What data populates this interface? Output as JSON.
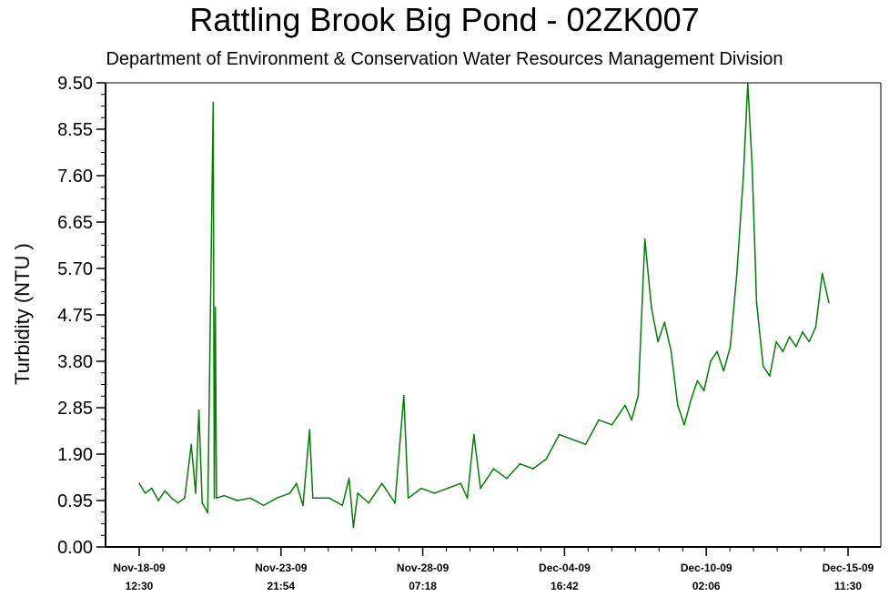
{
  "chart_data": {
    "type": "line",
    "title": "Rattling Brook Big Pond - 02ZK007",
    "subtitle": "Department of Environment & Conservation Water Resources Management Division",
    "ylabel": "Turbidity (NTU )",
    "xlabel": "",
    "ylim": [
      0,
      9.5
    ],
    "yticks": [
      "0.00",
      "0.95",
      "1.90",
      "2.85",
      "3.80",
      "4.75",
      "5.70",
      "6.65",
      "7.60",
      "8.55",
      "9.50"
    ],
    "xlim": [
      "Nov-18-09 12:30",
      "Dec-15-09 11:30"
    ],
    "xticks": [
      {
        "line1": "Nov-18-09",
        "line2": "12:30"
      },
      {
        "line1": "Nov-23-09",
        "line2": "21:54"
      },
      {
        "line1": "Nov-28-09",
        "line2": "07:18"
      },
      {
        "line1": "Dec-04-09",
        "line2": "16:42"
      },
      {
        "line1": "Dec-10-09",
        "line2": "02:06"
      },
      {
        "line1": "Dec-15-09",
        "line2": "11:30"
      }
    ],
    "grid": false,
    "series": [
      {
        "color": "#008000",
        "points": [
          [
            "Nov-18-09 12:30",
            1.3
          ],
          [
            "Nov-18-09 18:00",
            1.1
          ],
          [
            "Nov-19-09 00:00",
            1.2
          ],
          [
            "Nov-19-09 06:00",
            0.95
          ],
          [
            "Nov-19-09 12:00",
            1.15
          ],
          [
            "Nov-19-09 18:00",
            1.0
          ],
          [
            "Nov-20-09 00:00",
            0.9
          ],
          [
            "Nov-20-09 06:00",
            1.0
          ],
          [
            "Nov-20-09 12:00",
            2.1
          ],
          [
            "Nov-20-09 16:00",
            1.1
          ],
          [
            "Nov-20-09 19:00",
            2.8
          ],
          [
            "Nov-20-09 22:00",
            0.9
          ],
          [
            "Nov-21-09 03:00",
            0.7
          ],
          [
            "Nov-21-09 06:00",
            5.7
          ],
          [
            "Nov-21-09 08:00",
            9.1
          ],
          [
            "Nov-21-09 09:00",
            1.0
          ],
          [
            "Nov-21-09 10:00",
            4.9
          ],
          [
            "Nov-21-09 11:00",
            1.0
          ],
          [
            "Nov-21-09 18:00",
            1.05
          ],
          [
            "Nov-22-09 06:00",
            0.95
          ],
          [
            "Nov-22-09 18:00",
            1.0
          ],
          [
            "Nov-23-09 06:00",
            0.85
          ],
          [
            "Nov-23-09 18:00",
            1.0
          ],
          [
            "Nov-24-09 06:00",
            1.1
          ],
          [
            "Nov-24-09 12:00",
            1.3
          ],
          [
            "Nov-24-09 18:00",
            0.85
          ],
          [
            "Nov-25-09 00:00",
            2.4
          ],
          [
            "Nov-25-09 03:00",
            1.0
          ],
          [
            "Nov-25-09 18:00",
            1.0
          ],
          [
            "Nov-26-09 06:00",
            0.85
          ],
          [
            "Nov-26-09 12:00",
            1.4
          ],
          [
            "Nov-26-09 16:00",
            0.4
          ],
          [
            "Nov-26-09 20:00",
            1.1
          ],
          [
            "Nov-27-09 06:00",
            0.9
          ],
          [
            "Nov-27-09 18:00",
            1.3
          ],
          [
            "Nov-28-09 06:00",
            0.9
          ],
          [
            "Nov-28-09 14:00",
            3.1
          ],
          [
            "Nov-28-09 18:00",
            1.0
          ],
          [
            "Nov-29-09 06:00",
            1.2
          ],
          [
            "Nov-29-09 18:00",
            1.1
          ],
          [
            "Nov-30-09 06:00",
            1.2
          ],
          [
            "Nov-30-09 18:00",
            1.3
          ],
          [
            "Dec-01-09 00:00",
            1.0
          ],
          [
            "Dec-01-09 06:00",
            2.3
          ],
          [
            "Dec-01-09 12:00",
            1.2
          ],
          [
            "Dec-02-09 00:00",
            1.6
          ],
          [
            "Dec-02-09 12:00",
            1.4
          ],
          [
            "Dec-03-09 00:00",
            1.7
          ],
          [
            "Dec-03-09 12:00",
            1.6
          ],
          [
            "Dec-04-09 00:00",
            1.8
          ],
          [
            "Dec-04-09 12:00",
            2.3
          ],
          [
            "Dec-05-09 00:00",
            2.2
          ],
          [
            "Dec-05-09 12:00",
            2.1
          ],
          [
            "Dec-06-09 00:00",
            2.6
          ],
          [
            "Dec-06-09 12:00",
            2.5
          ],
          [
            "Dec-07-09 00:00",
            2.9
          ],
          [
            "Dec-07-09 06:00",
            2.6
          ],
          [
            "Dec-07-09 12:00",
            3.1
          ],
          [
            "Dec-07-09 18:00",
            6.3
          ],
          [
            "Dec-08-09 00:00",
            4.9
          ],
          [
            "Dec-08-09 06:00",
            4.2
          ],
          [
            "Dec-08-09 12:00",
            4.6
          ],
          [
            "Dec-08-09 18:00",
            4.0
          ],
          [
            "Dec-09-09 00:00",
            2.9
          ],
          [
            "Dec-09-09 06:00",
            2.5
          ],
          [
            "Dec-09-09 12:00",
            3.0
          ],
          [
            "Dec-09-09 18:00",
            3.4
          ],
          [
            "Dec-10-09 00:00",
            3.2
          ],
          [
            "Dec-10-09 06:00",
            3.8
          ],
          [
            "Dec-10-09 12:00",
            4.0
          ],
          [
            "Dec-10-09 18:00",
            3.6
          ],
          [
            "Dec-11-09 00:00",
            4.1
          ],
          [
            "Dec-11-09 06:00",
            5.6
          ],
          [
            "Dec-11-09 12:00",
            7.6
          ],
          [
            "Dec-11-09 16:00",
            9.5
          ],
          [
            "Dec-11-09 20:00",
            7.8
          ],
          [
            "Dec-12-09 00:00",
            5.0
          ],
          [
            "Dec-12-09 06:00",
            3.7
          ],
          [
            "Dec-12-09 12:00",
            3.5
          ],
          [
            "Dec-12-09 18:00",
            4.2
          ],
          [
            "Dec-13-09 00:00",
            4.0
          ],
          [
            "Dec-13-09 06:00",
            4.3
          ],
          [
            "Dec-13-09 12:00",
            4.1
          ],
          [
            "Dec-13-09 18:00",
            4.4
          ],
          [
            "Dec-14-09 00:00",
            4.2
          ],
          [
            "Dec-14-09 06:00",
            4.5
          ],
          [
            "Dec-14-09 12:00",
            5.6
          ],
          [
            "Dec-14-09 18:00",
            5.0
          ]
        ]
      }
    ]
  }
}
